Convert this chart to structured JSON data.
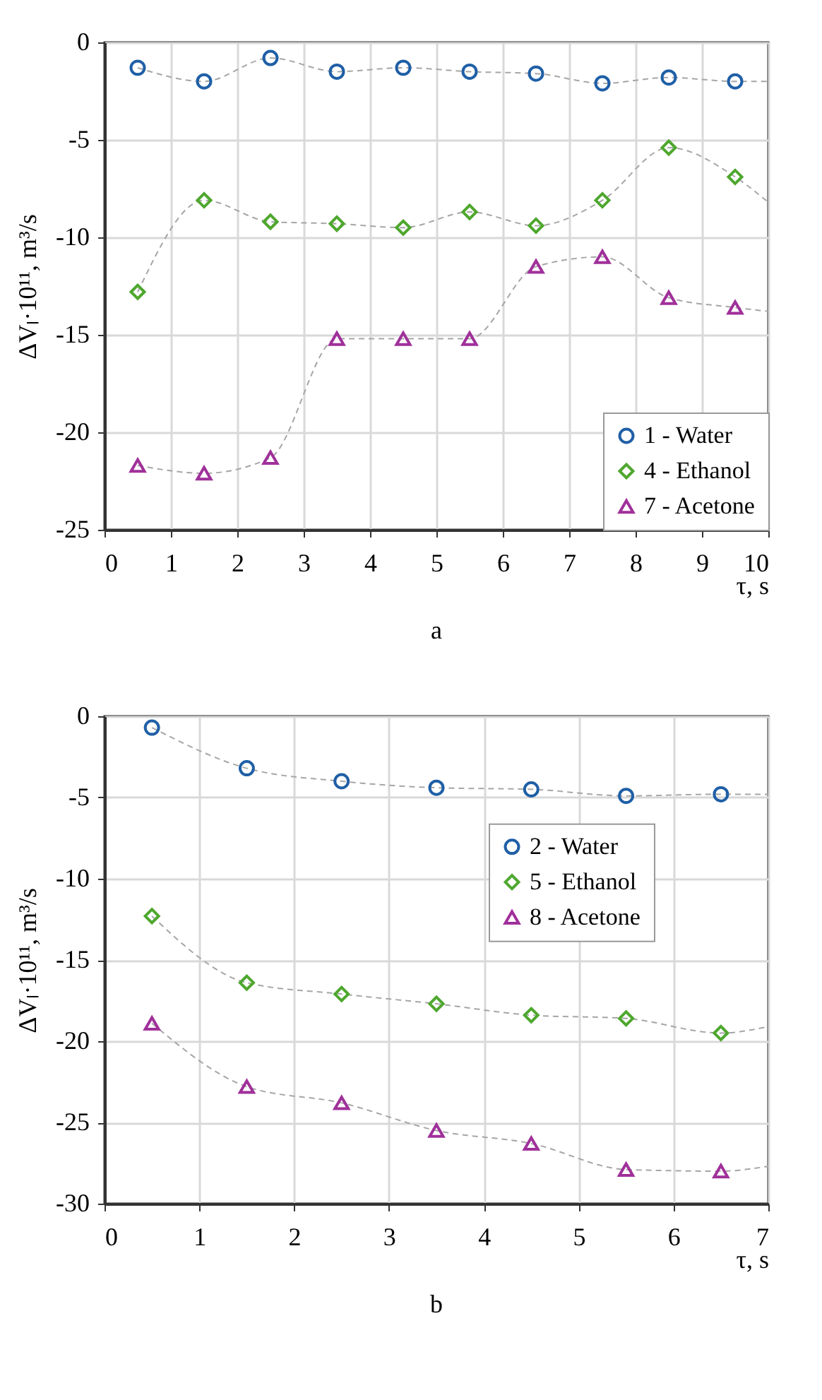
{
  "chart_data": [
    {
      "type": "scatter",
      "title": "a",
      "xlabel": "τ, s",
      "ylabel": "ΔVₗ·10¹¹, m³/s",
      "xlim": [
        0,
        10
      ],
      "ylim": [
        -25,
        0
      ],
      "xticks": [
        0,
        1,
        2,
        3,
        4,
        5,
        6,
        7,
        8,
        9,
        10
      ],
      "yticks": [
        -25,
        -20,
        -15,
        -10,
        -5,
        0
      ],
      "grid": true,
      "legend": "bottom right",
      "x": [
        0.5,
        1.5,
        2.5,
        3.5,
        4.5,
        5.5,
        6.5,
        7.5,
        8.5,
        9.5
      ],
      "series": [
        {
          "type": "line",
          "color": "#a6a6a6",
          "line_style": "dashed",
          "marker": "none",
          "x": [
            0.5,
            1.5,
            2.5,
            3.5,
            4.5,
            5.5,
            6.5,
            7.5,
            8.5,
            9.5,
            10
          ],
          "values": [
            -1.3,
            -2.0,
            -0.8,
            -1.5,
            -1.3,
            -1.5,
            -1.6,
            -2.1,
            -1.8,
            -2.0,
            -2.0
          ]
        },
        {
          "type": "line",
          "color": "#a6a6a6",
          "line_style": "dashed",
          "marker": "none",
          "x": [
            0.5,
            1.5,
            2.5,
            3.5,
            4.5,
            5.5,
            6.5,
            7.5,
            8.5,
            9.5,
            10
          ],
          "values": [
            -12.8,
            -8.1,
            -9.2,
            -9.3,
            -9.5,
            -8.7,
            -9.4,
            -8.1,
            -5.4,
            -6.9,
            -8.2
          ]
        },
        {
          "type": "line",
          "color": "#a6a6a6",
          "line_style": "dashed",
          "marker": "none",
          "x": [
            0.5,
            1.5,
            2.5,
            3.5,
            4.5,
            5.5,
            6.5,
            7.5,
            8.5,
            9.5,
            10
          ],
          "values": [
            -21.7,
            -22.1,
            -21.3,
            -15.2,
            -15.2,
            -15.2,
            -11.5,
            -11.0,
            -13.1,
            -13.6,
            -13.8
          ]
        },
        {
          "name": "1 - Water",
          "color": "#1f5fa6",
          "marker": "circle",
          "values": [
            -1.3,
            -2.0,
            -0.8,
            -1.5,
            -1.3,
            -1.5,
            -1.6,
            -2.1,
            -1.8,
            -2.0
          ]
        },
        {
          "name": "4 - Ethanol",
          "color": "#4ea72e",
          "marker": "diamond",
          "values": [
            -12.8,
            -8.1,
            -9.2,
            -9.3,
            -9.5,
            -8.7,
            -9.4,
            -8.1,
            -5.4,
            -6.9
          ]
        },
        {
          "name": "7 - Acetone",
          "color": "#a0309a",
          "marker": "triangle",
          "values": [
            -21.7,
            -22.1,
            -21.3,
            -15.2,
            -15.2,
            -15.2,
            -11.5,
            -11.0,
            -13.1,
            -13.6
          ]
        }
      ]
    },
    {
      "type": "scatter",
      "title": "b",
      "xlabel": "τ, s",
      "ylabel": "ΔVₗ·10¹¹, m³/s",
      "xlim": [
        0,
        7
      ],
      "ylim": [
        -30,
        0
      ],
      "xticks": [
        0,
        1,
        2,
        3,
        4,
        5,
        6,
        7
      ],
      "yticks": [
        -30,
        -25,
        -20,
        -15,
        -10,
        -5,
        0
      ],
      "grid": true,
      "legend": "right",
      "x": [
        0.5,
        1.5,
        2.5,
        3.5,
        4.5,
        5.5,
        6.5
      ],
      "series": [
        {
          "type": "line",
          "color": "#a6a6a6",
          "line_style": "dashed",
          "marker": "none",
          "x": [
            0.5,
            1.5,
            2.5,
            3.5,
            4.5,
            5.5,
            6.5,
            7
          ],
          "values": [
            -0.7,
            -3.2,
            -4.0,
            -4.4,
            -4.5,
            -4.9,
            -4.8,
            -4.8
          ]
        },
        {
          "type": "line",
          "color": "#a6a6a6",
          "line_style": "dashed",
          "marker": "none",
          "x": [
            0.5,
            1.5,
            2.5,
            3.5,
            4.5,
            5.5,
            6.5,
            7
          ],
          "values": [
            -12.3,
            -16.4,
            -17.1,
            -17.7,
            -18.4,
            -18.6,
            -19.5,
            -19.1
          ]
        },
        {
          "type": "line",
          "color": "#a6a6a6",
          "line_style": "dashed",
          "marker": "none",
          "x": [
            0.5,
            1.5,
            2.5,
            3.5,
            4.5,
            5.5,
            6.5,
            7
          ],
          "values": [
            -18.9,
            -22.8,
            -23.8,
            -25.5,
            -26.3,
            -27.9,
            -28.0,
            -27.7
          ]
        },
        {
          "name": "2 - Water",
          "color": "#1f5fa6",
          "marker": "circle",
          "values": [
            -0.7,
            -3.2,
            -4.0,
            -4.4,
            -4.5,
            -4.9,
            -4.8
          ]
        },
        {
          "name": "5 - Ethanol",
          "color": "#4ea72e",
          "marker": "diamond",
          "values": [
            -12.3,
            -16.4,
            -17.1,
            -17.7,
            -18.4,
            -18.6,
            -19.5
          ]
        },
        {
          "name": "8 - Acetone",
          "color": "#a0309a",
          "marker": "triangle",
          "values": [
            -18.9,
            -22.8,
            -23.8,
            -25.5,
            -26.3,
            -27.9,
            -28.0
          ]
        }
      ]
    }
  ]
}
